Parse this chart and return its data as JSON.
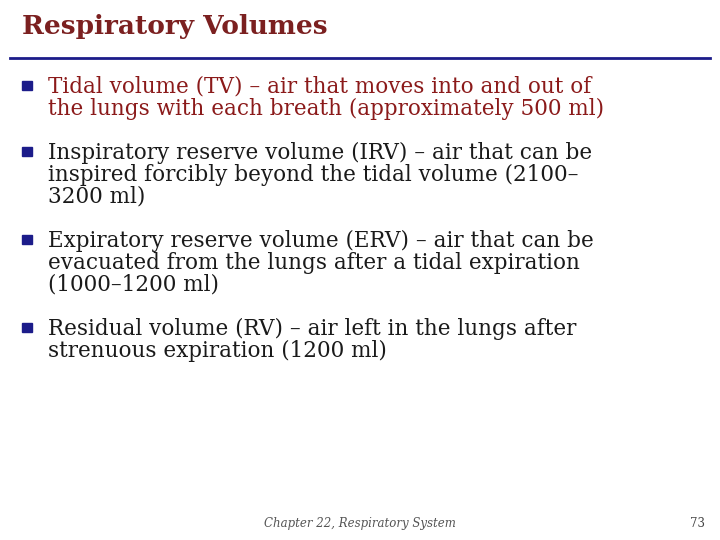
{
  "title": "Respiratory Volumes",
  "title_color": "#7B2020",
  "title_fontsize": 19,
  "background_color": "#FFFFFF",
  "line_color": "#1C1C8A",
  "bullet_color": "#1C1C8A",
  "bullet_items": [
    {
      "lines": [
        "Tidal volume (TV) – air that moves into and out of",
        "the lungs with each breath (approximately 500 ml)"
      ],
      "color": "#8B1A1A",
      "fontsize": 15.5
    },
    {
      "lines": [
        "Inspiratory reserve volume (IRV) – air that can be",
        "inspired forcibly beyond the tidal volume (2100–",
        "3200 ml)"
      ],
      "color": "#1a1a1a",
      "fontsize": 15.5
    },
    {
      "lines": [
        "Expiratory reserve volume (ERV) – air that can be",
        "evacuated from the lungs after a tidal expiration",
        "(1000–1200 ml)"
      ],
      "color": "#1a1a1a",
      "fontsize": 15.5
    },
    {
      "lines": [
        "Residual volume (RV) – air left in the lungs after",
        "strenuous expiration (1200 ml)"
      ],
      "color": "#1a1a1a",
      "fontsize": 15.5
    }
  ],
  "footer_text": "Chapter 22, Respiratory System",
  "footer_page": "73",
  "footer_fontsize": 8.5
}
